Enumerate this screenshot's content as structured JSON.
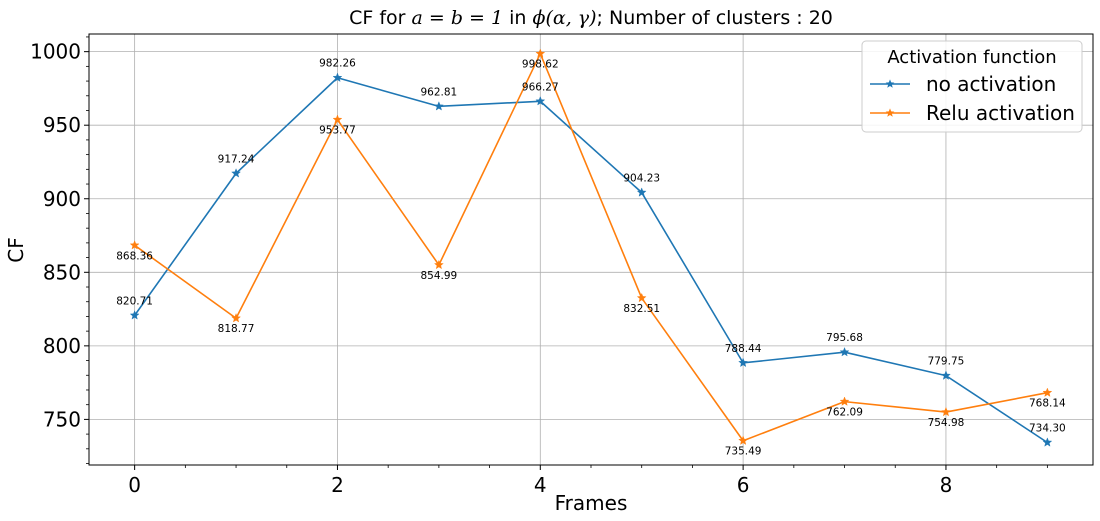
{
  "chart_data": {
    "type": "line",
    "title_prefix": "CF for ",
    "title_math_1": "a = b = 1",
    "title_mid": " in ",
    "title_math_2": "ϕ(α, γ)",
    "title_suffix": "; Number of clusters : 20",
    "xlabel": "Frames",
    "ylabel": "CF",
    "xlim": [
      -0.45,
      9.45
    ],
    "ylim": [
      719,
      1012
    ],
    "x_ticks": [
      "0",
      "2",
      "4",
      "6",
      "8"
    ],
    "y_ticks": [
      "750",
      "800",
      "850",
      "900",
      "950",
      "1000"
    ],
    "grid": true,
    "legend": {
      "title": "Activation function",
      "placement": "upper-right"
    },
    "x": [
      0,
      1,
      2,
      3,
      4,
      5,
      6,
      7,
      8,
      9
    ],
    "series": [
      {
        "name": "no activation",
        "color": "#1f77b4",
        "marker": "star",
        "values": [
          820.71,
          917.24,
          982.26,
          962.81,
          966.27,
          904.23,
          788.44,
          795.68,
          779.75,
          734.3
        ],
        "labels": [
          "820.71",
          "917.24",
          "982.26",
          "962.81",
          "966.27",
          "904.23",
          "788.44",
          "795.68",
          "779.75",
          "734.30"
        ]
      },
      {
        "name": "Relu activation",
        "color": "#ff7f0e",
        "marker": "star",
        "values": [
          868.36,
          818.77,
          953.77,
          854.99,
          998.62,
          832.51,
          735.49,
          762.09,
          754.98,
          768.14
        ],
        "labels": [
          "868.36",
          "818.77",
          "953.77",
          "854.99",
          "998.62",
          "832.51",
          "735.49",
          "762.09",
          "754.98",
          "768.14"
        ]
      }
    ]
  }
}
